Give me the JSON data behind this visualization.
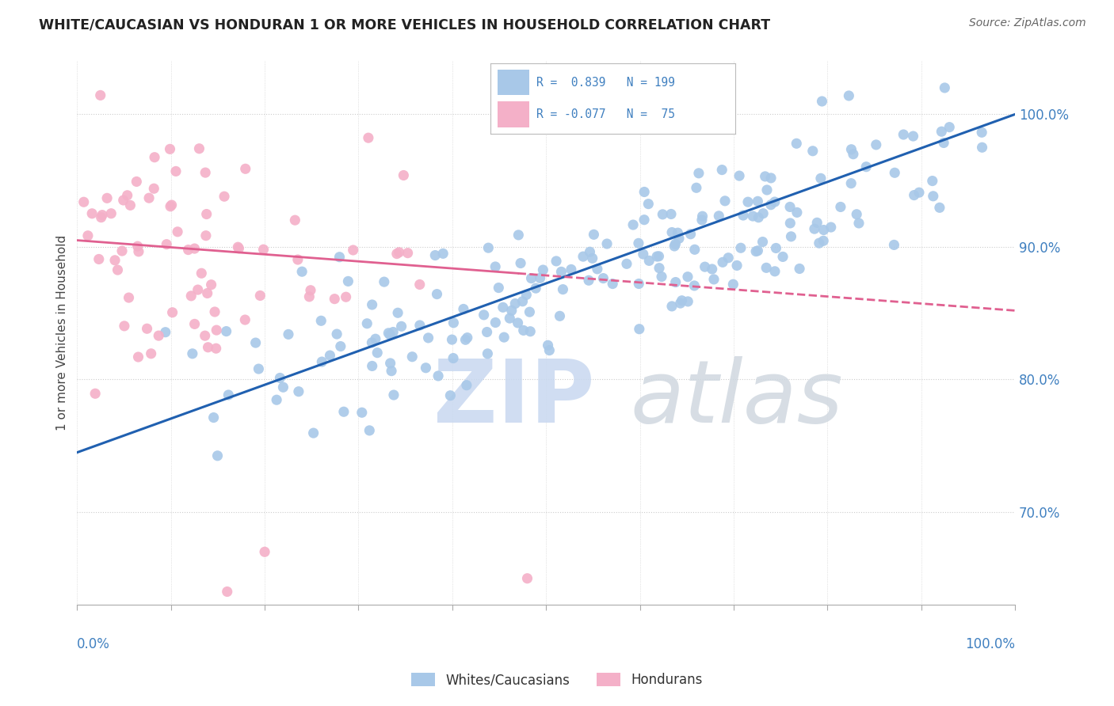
{
  "title": "WHITE/CAUCASIAN VS HONDURAN 1 OR MORE VEHICLES IN HOUSEHOLD CORRELATION CHART",
  "source": "Source: ZipAtlas.com",
  "ylabel": "1 or more Vehicles in Household",
  "ytick_values": [
    0.7,
    0.8,
    0.9,
    1.0
  ],
  "blue_color": "#a8c8e8",
  "pink_color": "#f4b0c8",
  "blue_line_color": "#2060b0",
  "pink_line_color": "#e06090",
  "R_blue": 0.839,
  "N_blue": 199,
  "R_pink": -0.077,
  "N_pink": 75,
  "label_color": "#4080c0",
  "watermark_zip_color": "#c8d8f0",
  "watermark_atlas_color": "#d0d8e0",
  "figsize": [
    14.06,
    8.92
  ],
  "dpi": 100,
  "xlim": [
    0.0,
    1.0
  ],
  "ylim": [
    0.63,
    1.04
  ],
  "blue_seed": 42,
  "pink_seed": 17
}
